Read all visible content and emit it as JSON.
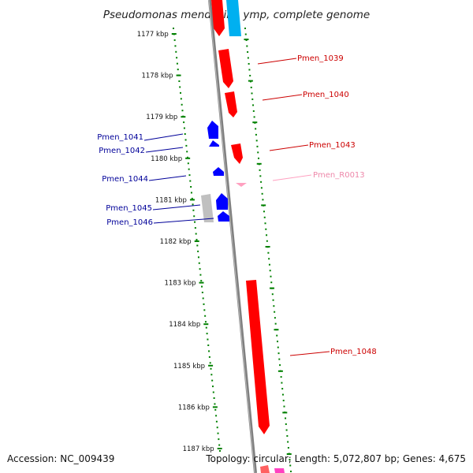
{
  "title": "Pseudomonas mendocina ymp, complete genome",
  "accession": "Accession: NC_009439",
  "summary": "Topology: circular; Length: 5,072,807 bp; Genes: 4,675",
  "colors": {
    "backbone": "#808080",
    "forward_gene": "#ff0000",
    "reverse_gene": "#0000ff",
    "rna": "#ffa0c0",
    "other_gene": "#c0c0c0",
    "forward_label": "#cc0000",
    "reverse_label": "#000099",
    "ticks": "#008000"
  },
  "ticks": [
    "1177 kbp",
    "1178 kbp",
    "1179 kbp",
    "1180 kbp",
    "1181 kbp",
    "1182 kbp",
    "1183 kbp",
    "1184 kbp",
    "1185 kbp",
    "1186 kbp",
    "1187 kbp"
  ],
  "genes": [
    {
      "label": "Pmen_1039",
      "kind": "forward"
    },
    {
      "label": "Pmen_1040",
      "kind": "forward"
    },
    {
      "label": "Pmen_1041",
      "kind": "reverse"
    },
    {
      "label": "Pmen_1042",
      "kind": "reverse"
    },
    {
      "label": "Pmen_1043",
      "kind": "forward"
    },
    {
      "label": "Pmen_1044",
      "kind": "reverse"
    },
    {
      "label": "Pmen_R0013",
      "kind": "rna"
    },
    {
      "label": "Pmen_1045",
      "kind": "reverse"
    },
    {
      "label": "Pmen_1046",
      "kind": "reverse"
    },
    {
      "label": "Pmen_1048",
      "kind": "forward"
    }
  ]
}
